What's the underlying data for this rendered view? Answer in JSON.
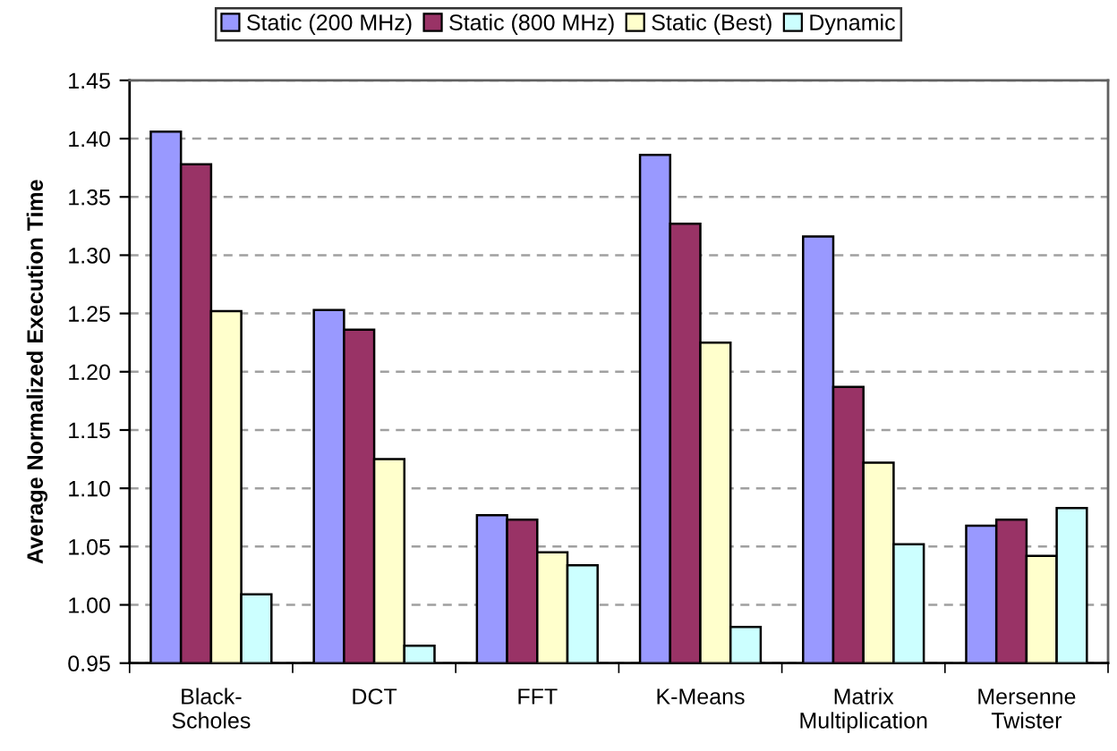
{
  "chart_data": {
    "type": "bar",
    "ylabel": "Average Normalized Execution Time",
    "categories": [
      "Black-\nScholes",
      "DCT",
      "FFT",
      "K-Means",
      "Matrix\nMultiplication",
      "Mersenne\nTwister"
    ],
    "series": [
      {
        "name": "Static (200 MHz)",
        "color": "#9999ff",
        "values": [
          1.406,
          1.253,
          1.077,
          1.386,
          1.316,
          1.068
        ]
      },
      {
        "name": "Static (800 MHz)",
        "color": "#993366",
        "values": [
          1.378,
          1.236,
          1.073,
          1.327,
          1.187,
          1.073
        ]
      },
      {
        "name": "Static (Best)",
        "color": "#ffffcc",
        "values": [
          1.252,
          1.125,
          1.045,
          1.225,
          1.122,
          1.042
        ]
      },
      {
        "name": "Dynamic",
        "color": "#ccffff",
        "values": [
          1.009,
          0.965,
          1.034,
          0.981,
          1.052,
          1.083
        ]
      }
    ],
    "ylim": [
      0.95,
      1.45
    ],
    "yticks": [
      {
        "value": 0.95,
        "label": "0.95"
      },
      {
        "value": 1.0,
        "label": "1.00"
      },
      {
        "value": 1.05,
        "label": "1.05"
      },
      {
        "value": 1.1,
        "label": "1.10"
      },
      {
        "value": 1.15,
        "label": "1.15"
      },
      {
        "value": 1.2,
        "label": "1.20"
      },
      {
        "value": 1.25,
        "label": "1.25"
      },
      {
        "value": 1.3,
        "label": "1.30"
      },
      {
        "value": 1.35,
        "label": "1.35"
      },
      {
        "value": 1.4,
        "label": "1.40"
      },
      {
        "value": 1.45,
        "label": "1.45"
      }
    ],
    "grid": "y",
    "legend": "top",
    "line_style": "dashed"
  }
}
